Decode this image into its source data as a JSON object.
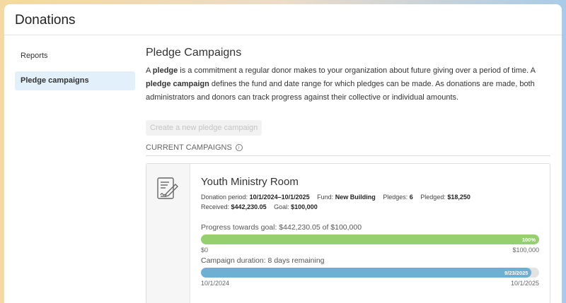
{
  "header": {
    "title": "Donations"
  },
  "sidebar": {
    "items": [
      {
        "label": "Reports",
        "active": false
      },
      {
        "label": "Pledge campaigns",
        "active": true
      }
    ]
  },
  "main": {
    "title": "Pledge Campaigns",
    "desc": {
      "p1": "A ",
      "b1": "pledge",
      "p2": " is a commitment a regular donor makes to your organization about future giving over a period of time. A ",
      "b2": "pledge campaign",
      "p3": " defines the fund and date range for which pledges can be made. As donations are made, both administrators and donors can track progress against their collective or individual amounts."
    },
    "create_button": "Create a new pledge campaign",
    "section_label": "CURRENT CAMPAIGNS",
    "info_icon": "i",
    "campaign": {
      "icon": "document-signature-icon",
      "name": "Youth Ministry Room",
      "period_label": "Donation period:",
      "period": "10/1/2024–10/1/2025",
      "fund_label": "Fund:",
      "fund": "New Building",
      "pledges_label": "Pledges:",
      "pledges": "6",
      "pledged_label": "Pledged:",
      "pledged": "$18,250",
      "received_label": "Received:",
      "received": "$442,230.05",
      "goal_label": "Goal:",
      "goal": "$100,000",
      "progress_label": "Progress towards goal: $442,230.05 of $100,000",
      "progress_percent": 100,
      "progress_text": "100%",
      "progress_min": "$0",
      "progress_max": "$100,000",
      "duration_label": "Campaign duration: 8 days remaining",
      "duration_percent": 97.8,
      "duration_text": "9/23/2025",
      "duration_start": "10/1/2024",
      "duration_end": "10/1/2025"
    }
  },
  "colors": {
    "progress": "#96d06e",
    "duration": "#6cb0d4",
    "active_sidebar": "#e1f0fb"
  }
}
